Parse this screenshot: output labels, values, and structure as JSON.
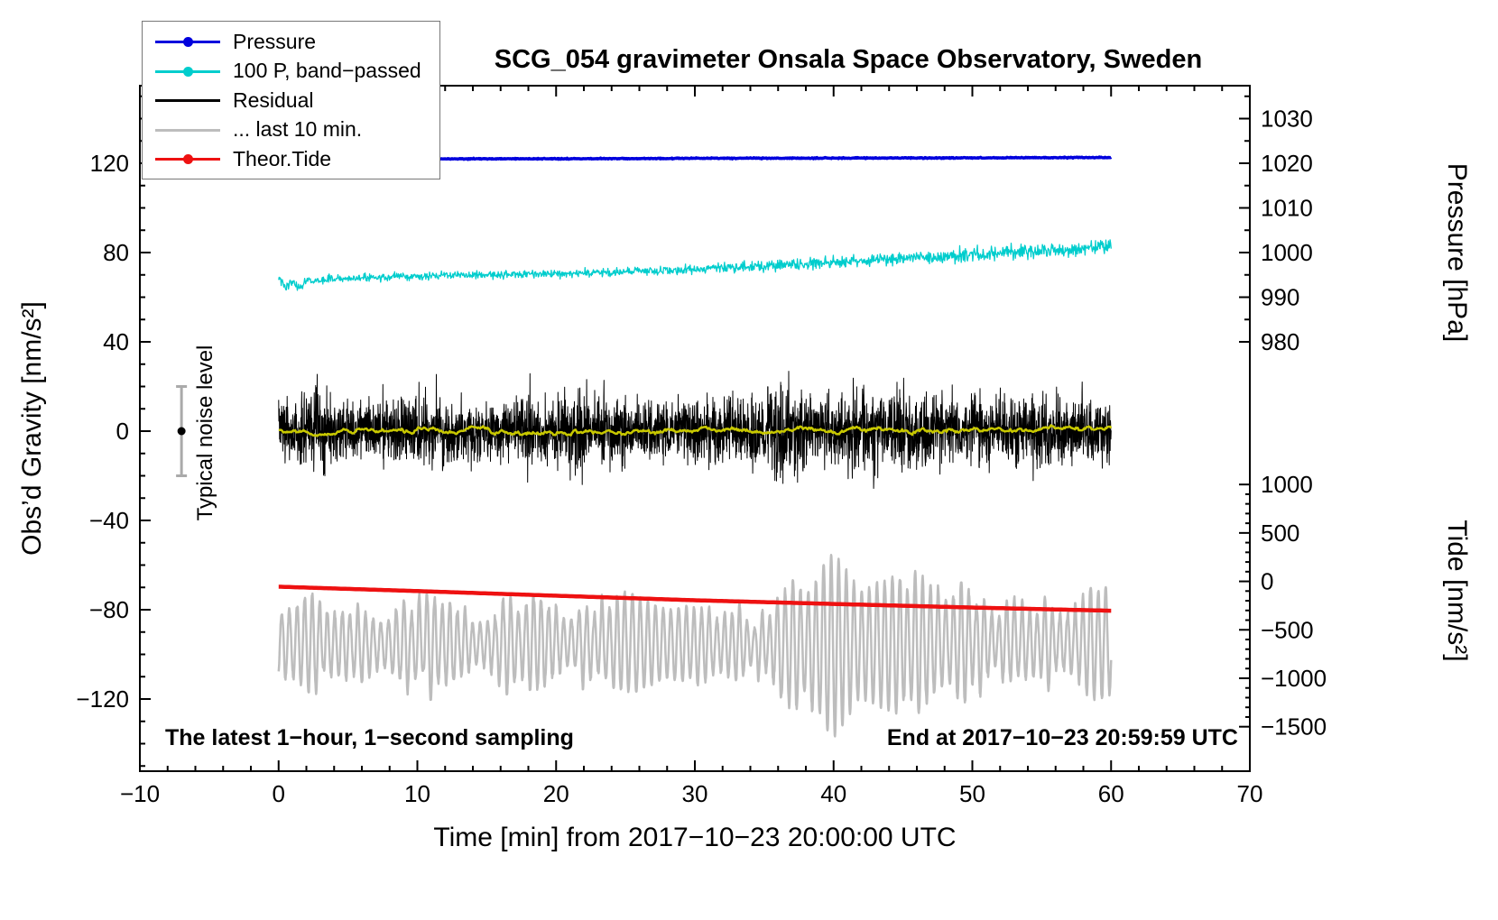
{
  "title": "SCG_054 gravimeter Onsala Space Observatory, Sweden",
  "axes": {
    "x_label": "Time [min] from 2017−10−23 20:00:00 UTC",
    "y_left_label": "Obs’d Gravity [nm/s²]",
    "y_right_top_label": "Pressure [hPa]",
    "y_right_bottom_label": "Tide [nm/s²]"
  },
  "annotations": {
    "sampling_note": "The latest 1−hour, 1−second sampling",
    "end_note": "End at 2017−10−23 20:59:59 UTC",
    "noise_label": "Typical noise level"
  },
  "legend": {
    "items": [
      {
        "label": "Pressure",
        "color": "#0000dd",
        "marker": true
      },
      {
        "label": "100 P, band−passed",
        "color": "#00cdcd",
        "marker": true
      },
      {
        "label": "Residual",
        "color": "#000000",
        "marker": false
      },
      {
        "label": "... last 10 min.",
        "color": "#bdbdbd",
        "marker": false
      },
      {
        "label": "Theor.Tide",
        "color": "#ee1111",
        "marker": true
      }
    ]
  },
  "chart_data": {
    "type": "line",
    "title": "SCG_054 gravimeter Onsala Space Observatory, Sweden",
    "xlabel": "Time [min] from 2017−10−23 20:00:00 UTC",
    "ylabel_left": "Obs'd Gravity [nm/s²]",
    "ylabel_right_top": "Pressure [hPa]",
    "ylabel_right_bottom": "Tide [nm/s²]",
    "xlim": [
      -10,
      70
    ],
    "x_ticks": [
      -10,
      0,
      10,
      20,
      30,
      40,
      50,
      60,
      70
    ],
    "x_minor_step": 2,
    "y_ticks_left": [
      -120,
      -80,
      -40,
      0,
      40,
      80,
      120
    ],
    "y_left_minor_step": 10,
    "pressure_ticks": [
      980,
      990,
      1000,
      1010,
      1020,
      1030
    ],
    "pressure_minor_step": 5,
    "tide_ticks": [
      -1500,
      -1000,
      -500,
      0,
      500,
      1000
    ],
    "tide_minor_step": 100,
    "pressure_map": {
      "v0": 980,
      "g0": 40,
      "g_per_unit": 2
    },
    "tide_map": {
      "v0": 0,
      "g0": -67.3,
      "g_per_unit": 0.0434
    },
    "noise_marker": {
      "x": -7,
      "y": 0,
      "error": 20,
      "point_color": "#000000",
      "bar_color": "#aaaaaa"
    },
    "series": [
      {
        "name": "... last 10 min.",
        "color": "#bdbdbd",
        "axis": "gravity",
        "width": 2.5,
        "gen": "osc",
        "xrange": [
          0,
          60
        ],
        "samples": 3000,
        "period": 0.55,
        "mean": [
          -95,
          -96,
          -94.5,
          -95.5,
          -96,
          -94.5,
          -95
        ],
        "amp": [
          14,
          22,
          18,
          14,
          12,
          26,
          20,
          20,
          24,
          26,
          24,
          22,
          18,
          14,
          10,
          12,
          14,
          12,
          32,
          18,
          28,
          16,
          20,
          22,
          18,
          30,
          22,
          18,
          14,
          20,
          16
        ]
      },
      {
        "name": "Theor.Tide",
        "color": "#ee1111",
        "axis": "tide",
        "width": 4.5,
        "gen": "smooth",
        "samples": 400,
        "x": [
          0,
          10,
          20,
          30,
          40,
          50,
          60
        ],
        "values": [
          -55,
          -100,
          -148,
          -195,
          -233,
          -270,
          -303
        ],
        "noise": 0
      },
      {
        "name": "100 P, band−passed",
        "color": "#00cdcd",
        "axis": "gravity",
        "width": 1.3,
        "gen": "smooth",
        "samples": 1600,
        "x": [
          0,
          0.5,
          1,
          1.5,
          2,
          3,
          5,
          7.5,
          10,
          15,
          20,
          25,
          30,
          35,
          40,
          45,
          50,
          55,
          60
        ],
        "values": [
          68,
          64.5,
          67,
          63.5,
          67.5,
          68,
          68.5,
          69,
          69.5,
          70,
          70.5,
          71.5,
          72.5,
          74,
          75.8,
          77.3,
          79,
          81,
          82.5
        ],
        "noise": 1.6,
        "noise_env": [
          1,
          1.2,
          1.2,
          1.2,
          1,
          1,
          1,
          1,
          1,
          1,
          1,
          1.1,
          1.2,
          1.4,
          1.4,
          1.5,
          1.8,
          1.9,
          1.8
        ]
      },
      {
        "name": "Pressure",
        "color": "#0000dd",
        "axis": "pressure",
        "width": 3.5,
        "gen": "smooth",
        "samples": 1200,
        "x": [
          0,
          10,
          20,
          30,
          40,
          50,
          60
        ],
        "values": [
          1020.9,
          1021.0,
          1021.0,
          1021.1,
          1021.15,
          1021.2,
          1021.3
        ],
        "noise": 0.1
      },
      {
        "name": "Residual",
        "color": "#000000",
        "axis": "gravity",
        "width": 1,
        "gen": "noise",
        "xrange": [
          0,
          60
        ],
        "samples": 3600,
        "tail": 1.8,
        "envelope": [
          12,
          13,
          15,
          21,
          16,
          12,
          12,
          14,
          13,
          13,
          14,
          13,
          13,
          12,
          13,
          12,
          12,
          13,
          12,
          12,
          13,
          15,
          18,
          14,
          13,
          13,
          13,
          14,
          13,
          12,
          13,
          13,
          13,
          13,
          14,
          14,
          21,
          19,
          14,
          13,
          14,
          16,
          17,
          18,
          17,
          16,
          14,
          13,
          13,
          13,
          14,
          14,
          14,
          15,
          14,
          16,
          15,
          14,
          14,
          13,
          13
        ]
      },
      {
        "name": "Residual smoothed",
        "color": "#c8c800",
        "axis": "gravity",
        "width": 2.5,
        "gen": "smooth",
        "samples": 900,
        "x": [
          0,
          5,
          10,
          15,
          20,
          25,
          30,
          35,
          40,
          45,
          50,
          55,
          60
        ],
        "values": [
          0.5,
          -0.5,
          1,
          0.2,
          -0.8,
          0.5,
          1,
          -0.3,
          0,
          0.5,
          -0.5,
          0.8,
          0.2
        ],
        "noise": 0.7,
        "noise_smooth": true
      }
    ]
  }
}
